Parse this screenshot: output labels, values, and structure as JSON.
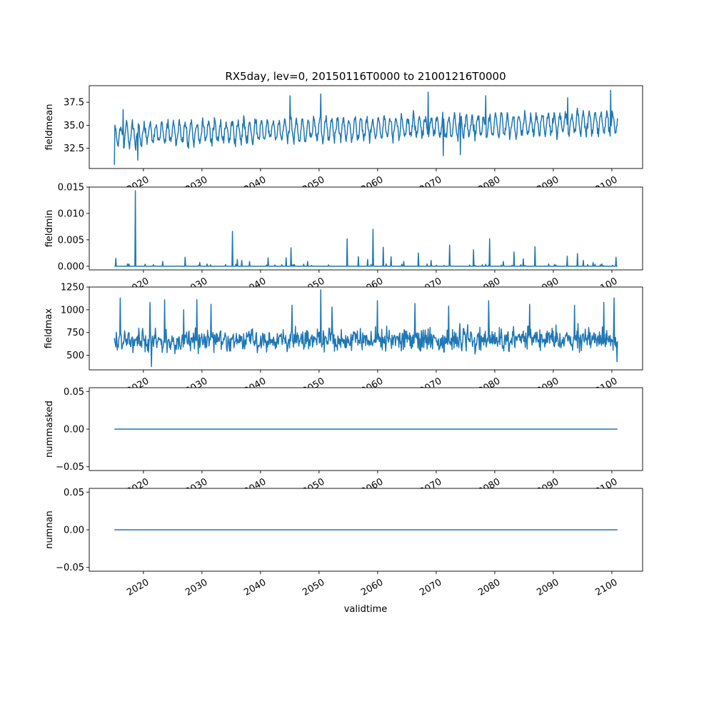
{
  "chart_data": {
    "title": "RX5day, lev=0, 20150116T0000 to 21001216T0000",
    "xlabel": "validtime",
    "type": "line",
    "line_color": "#1f77b4",
    "x_range": [
      2015.04,
      2100.96
    ],
    "x_axis_limits": [
      2010.75,
      2105.25
    ],
    "x_ticks": [
      2020,
      2030,
      2040,
      2050,
      2060,
      2070,
      2080,
      2090,
      2100
    ],
    "x_tick_labels": [
      "2020",
      "2030",
      "2040",
      "2050",
      "2060",
      "2070",
      "2080",
      "2090",
      "2100"
    ],
    "x_tick_labels_note": "x tick labels are fully visible only under the bottom panel; upper panels show them clipped",
    "panels": [
      {
        "ylabel": "fieldmean",
        "ylim": [
          30.3,
          39.3
        ],
        "y_ticks": [
          32.5,
          35.0,
          37.5
        ],
        "y_tick_labels": [
          "32.5",
          "35.0",
          "37.5"
        ],
        "series": {
          "kind": "seasonal_noise",
          "start_value": 30.7,
          "base_start": 34.0,
          "base_end": 35.3,
          "amplitude": 1.1,
          "noise": 0.55,
          "spikes": [
            {
              "x": 2016.5,
              "value": 36.7
            },
            {
              "x": 2019.0,
              "value": 31.2
            },
            {
              "x": 2045.0,
              "value": 38.2
            },
            {
              "x": 2050.3,
              "value": 38.4
            },
            {
              "x": 2071.2,
              "value": 31.7
            },
            {
              "x": 2074.1,
              "value": 31.8
            },
            {
              "x": 2068.6,
              "value": 38.6
            },
            {
              "x": 2078.5,
              "value": 38.2
            },
            {
              "x": 2099.8,
              "value": 38.8
            },
            {
              "x": 2092.5,
              "value": 38.0
            }
          ]
        }
      },
      {
        "ylabel": "fieldmin",
        "ylim": [
          -0.0007,
          0.015
        ],
        "y_ticks": [
          0.0,
          0.005,
          0.01,
          0.015
        ],
        "y_tick_labels": [
          "0.000",
          "0.005",
          "0.010",
          "0.015"
        ],
        "series": {
          "kind": "spiky_baseline",
          "baseline": 0.0,
          "spikes": [
            {
              "x": 2015.3,
              "value": 0.0015
            },
            {
              "x": 2018.6,
              "value": 0.0143
            },
            {
              "x": 2023.3,
              "value": 0.0009
            },
            {
              "x": 2027.1,
              "value": 0.0017
            },
            {
              "x": 2029.6,
              "value": 0.0007
            },
            {
              "x": 2035.2,
              "value": 0.0066
            },
            {
              "x": 2036.0,
              "value": 0.0013
            },
            {
              "x": 2036.8,
              "value": 0.0011
            },
            {
              "x": 2038.1,
              "value": 0.0009
            },
            {
              "x": 2041.3,
              "value": 0.0016
            },
            {
              "x": 2044.4,
              "value": 0.0016
            },
            {
              "x": 2045.2,
              "value": 0.0035
            },
            {
              "x": 2048.0,
              "value": 0.0009
            },
            {
              "x": 2054.8,
              "value": 0.0052
            },
            {
              "x": 2056.7,
              "value": 0.0018
            },
            {
              "x": 2058.3,
              "value": 0.0013
            },
            {
              "x": 2059.2,
              "value": 0.007
            },
            {
              "x": 2061.0,
              "value": 0.0036
            },
            {
              "x": 2062.3,
              "value": 0.0018
            },
            {
              "x": 2064.5,
              "value": 0.0009
            },
            {
              "x": 2067.0,
              "value": 0.0025
            },
            {
              "x": 2069.1,
              "value": 0.0011
            },
            {
              "x": 2072.3,
              "value": 0.004
            },
            {
              "x": 2076.4,
              "value": 0.0031
            },
            {
              "x": 2079.1,
              "value": 0.0052
            },
            {
              "x": 2081.5,
              "value": 0.0009
            },
            {
              "x": 2083.3,
              "value": 0.0027
            },
            {
              "x": 2084.9,
              "value": 0.0014
            },
            {
              "x": 2086.9,
              "value": 0.0037
            },
            {
              "x": 2092.4,
              "value": 0.0019
            },
            {
              "x": 2094.1,
              "value": 0.0024
            },
            {
              "x": 2095.1,
              "value": 0.0011
            },
            {
              "x": 2096.8,
              "value": 0.0007
            },
            {
              "x": 2100.7,
              "value": 0.0017
            }
          ]
        }
      },
      {
        "ylabel": "fieldmax",
        "ylim": [
          340,
          1250
        ],
        "y_ticks": [
          500,
          750,
          1000,
          1250
        ],
        "y_tick_labels": [
          "500",
          "750",
          "1000",
          "1250"
        ],
        "series": {
          "kind": "noise",
          "start_value": 690,
          "base_start": 660,
          "base_end": 680,
          "amplitude": 60,
          "noise": 120,
          "spikes": [
            {
              "x": 2016.0,
              "value": 1130
            },
            {
              "x": 2021.1,
              "value": 1080
            },
            {
              "x": 2023.6,
              "value": 1110
            },
            {
              "x": 2026.9,
              "value": 1000
            },
            {
              "x": 2029.1,
              "value": 1110
            },
            {
              "x": 2031.5,
              "value": 1060
            },
            {
              "x": 2021.4,
              "value": 375
            },
            {
              "x": 2050.3,
              "value": 1220
            },
            {
              "x": 2045.4,
              "value": 1050
            },
            {
              "x": 2052.2,
              "value": 1030
            },
            {
              "x": 2060.0,
              "value": 1100
            },
            {
              "x": 2066.4,
              "value": 1070
            },
            {
              "x": 2079.0,
              "value": 1100
            },
            {
              "x": 2072.1,
              "value": 1040
            },
            {
              "x": 2086.0,
              "value": 1060
            },
            {
              "x": 2093.6,
              "value": 1050
            },
            {
              "x": 2098.6,
              "value": 1080
            },
            {
              "x": 2100.4,
              "value": 1130
            },
            {
              "x": 2100.9,
              "value": 430
            }
          ]
        }
      },
      {
        "ylabel": "nummasked",
        "ylim": [
          -0.055,
          0.055
        ],
        "y_ticks": [
          -0.05,
          0.0,
          0.05
        ],
        "y_tick_labels": [
          "−0.05",
          "0.00",
          "0.05"
        ],
        "series": {
          "kind": "constant",
          "value": 0.0
        }
      },
      {
        "ylabel": "numnan",
        "ylim": [
          -0.055,
          0.055
        ],
        "y_ticks": [
          -0.05,
          0.0,
          0.05
        ],
        "y_tick_labels": [
          "−0.05",
          "0.00",
          "0.05"
        ],
        "series": {
          "kind": "constant",
          "value": 0.0
        }
      }
    ]
  }
}
